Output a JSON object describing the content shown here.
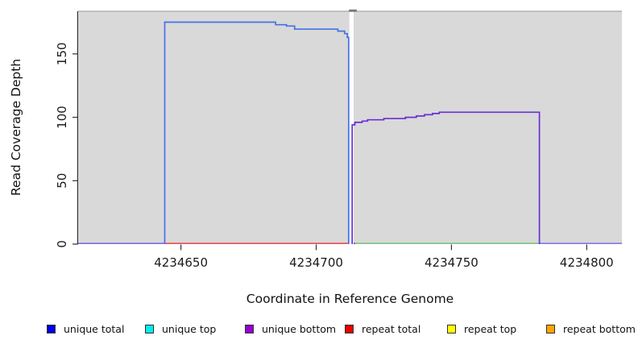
{
  "figure": {
    "background_color": "#ffffff",
    "plot_background_color": "#d9d9d9",
    "plot_top_border_color": "#a6a6a6",
    "axis_line_color": "#333333",
    "text_color": "#1a1a1a"
  },
  "chart_data": {
    "type": "line",
    "title": "",
    "xlabel": "Coordinate in Reference Genome",
    "ylabel": "Read Coverage Depth",
    "xlim": [
      4234612,
      4234813
    ],
    "ylim": [
      0,
      183.6
    ],
    "x_ticks": [
      4234650,
      4234700,
      4234750,
      4234800
    ],
    "y_ticks": [
      0,
      50,
      100,
      150
    ],
    "grid": false,
    "legend_position": "bottom",
    "series": [
      {
        "name": "unique total",
        "legend_color": "#0000ee",
        "line_color": "#4472e8",
        "points": [
          [
            4234644,
            0
          ],
          [
            4234644,
            175
          ],
          [
            4234685,
            175
          ],
          [
            4234685,
            173
          ],
          [
            4234689,
            173
          ],
          [
            4234689,
            172
          ],
          [
            4234692,
            172
          ],
          [
            4234692,
            169.5
          ],
          [
            4234708,
            169.5
          ],
          [
            4234708,
            168
          ],
          [
            4234710.5,
            168
          ],
          [
            4234710.5,
            166
          ],
          [
            4234711.5,
            166
          ],
          [
            4234711.5,
            163
          ],
          [
            4234712,
            163
          ],
          [
            4234712,
            0
          ]
        ]
      },
      {
        "name": "unique top",
        "legend_color": "#00eeee",
        "line_color": "#00eeee",
        "points": []
      },
      {
        "name": "unique bottom",
        "legend_color": "#9400d3",
        "line_color": "#6b2fd5",
        "points": [
          [
            4234713.3,
            0
          ],
          [
            4234713.3,
            94
          ],
          [
            4234714.3,
            94
          ],
          [
            4234714.3,
            96
          ],
          [
            4234717,
            96
          ],
          [
            4234717,
            97
          ],
          [
            4234719,
            97
          ],
          [
            4234719,
            98
          ],
          [
            4234725,
            98
          ],
          [
            4234725,
            99
          ],
          [
            4234733,
            99
          ],
          [
            4234733,
            100
          ],
          [
            4234737,
            100
          ],
          [
            4234737,
            101
          ],
          [
            4234740,
            101
          ],
          [
            4234740,
            102
          ],
          [
            4234743,
            102
          ],
          [
            4234743,
            103
          ],
          [
            4234745.5,
            103
          ],
          [
            4234745.5,
            104
          ],
          [
            4234782.5,
            104
          ],
          [
            4234782.5,
            0
          ]
        ]
      },
      {
        "name": "repeat total",
        "legend_color": "#ee0000",
        "line_color": "#e85050",
        "points": []
      },
      {
        "name": "repeat top",
        "legend_color": "#ffff00",
        "line_color": "#ffff00",
        "points": []
      },
      {
        "name": "repeat bottom",
        "legend_color": "#ffa500",
        "line_color": "#ffa500",
        "points": []
      }
    ],
    "baseline_segments": [
      {
        "x1": 4234612,
        "x2": 4234644,
        "depth": 0,
        "color": "#7b6ee0"
      },
      {
        "x1": 4234644,
        "x2": 4234712,
        "depth": 0,
        "color": "#e85050"
      },
      {
        "x1": 4234713.3,
        "x2": 4234714.6,
        "depth": 0,
        "color": "#6b2fd5"
      },
      {
        "x1": 4234714.3,
        "x2": 4234782.5,
        "depth": 0,
        "color": "#7cc47c"
      },
      {
        "x1": 4234782.5,
        "x2": 4234813,
        "depth": 0,
        "color": "#8677e6"
      }
    ],
    "coverage_gap": {
      "x_start": 4234712.25,
      "x_end": 4234713.2,
      "fill": "#ffffff",
      "top_tick_color": "#787878"
    }
  },
  "legend": {
    "items": [
      {
        "label": "unique total",
        "color": "#0000ee"
      },
      {
        "label": "unique top",
        "color": "#00eeee"
      },
      {
        "label": "unique bottom",
        "color": "#9400d3"
      },
      {
        "label": "repeat total",
        "color": "#ee0000"
      },
      {
        "label": "repeat top",
        "color": "#ffff00"
      },
      {
        "label": "repeat bottom",
        "color": "#ffa500"
      }
    ]
  }
}
